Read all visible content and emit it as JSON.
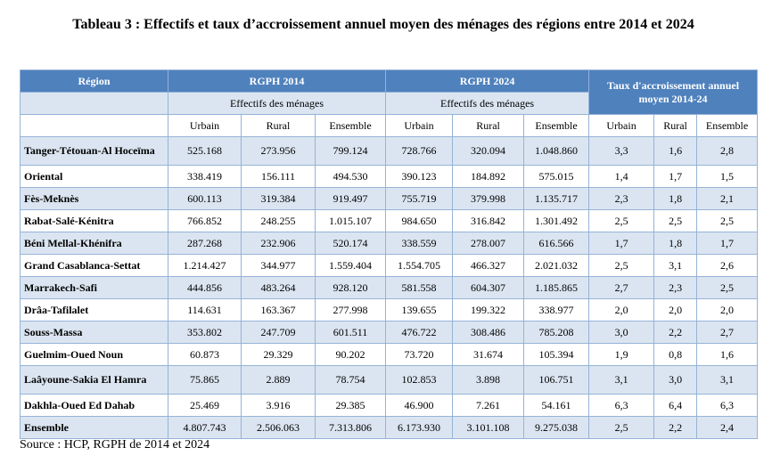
{
  "title": "Tableau 3 : Effectifs et taux d’accroissement annuel moyen des ménages des régions entre 2014 et 2024",
  "table": {
    "header": {
      "region": "Région",
      "groups": [
        "RGPH 2014",
        "RGPH 2024",
        "Taux d'accroissement annuel moyen 2014-24"
      ],
      "subgroups": [
        "Effectifs des ménages",
        "Effectifs des ménages"
      ],
      "columns": [
        "Urbain",
        "Rural",
        "Ensemble",
        "Urbain",
        "Rural",
        "Ensemble",
        "Urbain",
        "Rural",
        "Ensemble"
      ]
    },
    "rows": [
      {
        "region": "Tanger-Tétouan-Al Hoceïma",
        "values": [
          "525.168",
          "273.956",
          "799.124",
          "728.766",
          "320.094",
          "1.048.860",
          "3,3",
          "1,6",
          "2,8"
        ]
      },
      {
        "region": "Oriental",
        "values": [
          "338.419",
          "156.111",
          "494.530",
          "390.123",
          "184.892",
          "575.015",
          "1,4",
          "1,7",
          "1,5"
        ]
      },
      {
        "region": "Fès-Meknès",
        "values": [
          "600.113",
          "319.384",
          "919.497",
          "755.719",
          "379.998",
          "1.135.717",
          "2,3",
          "1,8",
          "2,1"
        ]
      },
      {
        "region": "Rabat-Salé-Kénitra",
        "values": [
          "766.852",
          "248.255",
          "1.015.107",
          "984.650",
          "316.842",
          "1.301.492",
          "2,5",
          "2,5",
          "2,5"
        ]
      },
      {
        "region": "Béni Mellal-Khénifra",
        "values": [
          "287.268",
          "232.906",
          "520.174",
          "338.559",
          "278.007",
          "616.566",
          "1,7",
          "1,8",
          "1,7"
        ]
      },
      {
        "region": "Grand Casablanca-Settat",
        "values": [
          "1.214.427",
          "344.977",
          "1.559.404",
          "1.554.705",
          "466.327",
          "2.021.032",
          "2,5",
          "3,1",
          "2,6"
        ]
      },
      {
        "region": "Marrakech-Safi",
        "values": [
          "444.856",
          "483.264",
          "928.120",
          "581.558",
          "604.307",
          "1.185.865",
          "2,7",
          "2,3",
          "2,5"
        ]
      },
      {
        "region": "Drâa-Tafilalet",
        "values": [
          "114.631",
          "163.367",
          "277.998",
          "139.655",
          "199.322",
          "338.977",
          "2,0",
          "2,0",
          "2,0"
        ]
      },
      {
        "region": "Souss-Massa",
        "values": [
          "353.802",
          "247.709",
          "601.511",
          "476.722",
          "308.486",
          "785.208",
          "3,0",
          "2,2",
          "2,7"
        ]
      },
      {
        "region": "Guelmim-Oued Noun",
        "values": [
          "60.873",
          "29.329",
          "90.202",
          "73.720",
          "31.674",
          "105.394",
          "1,9",
          "0,8",
          "1,6"
        ]
      },
      {
        "region": "Laâyoune-Sakia El Hamra",
        "values": [
          "75.865",
          "2.889",
          "78.754",
          "102.853",
          "3.898",
          "106.751",
          "3,1",
          "3,0",
          "3,1"
        ]
      },
      {
        "region": "Dakhla-Oued Ed Dahab",
        "values": [
          "25.469",
          "3.916",
          "29.385",
          "46.900",
          "7.261",
          "54.161",
          "6,3",
          "6,4",
          "6,3"
        ]
      },
      {
        "region": "Ensemble",
        "values": [
          "4.807.743",
          "2.506.063",
          "7.313.806",
          "6.173.930",
          "3.101.108",
          "9.275.038",
          "2,5",
          "2,2",
          "2,4"
        ]
      }
    ]
  },
  "source": "Source : HCP, RGPH de 2014 et 2024"
}
